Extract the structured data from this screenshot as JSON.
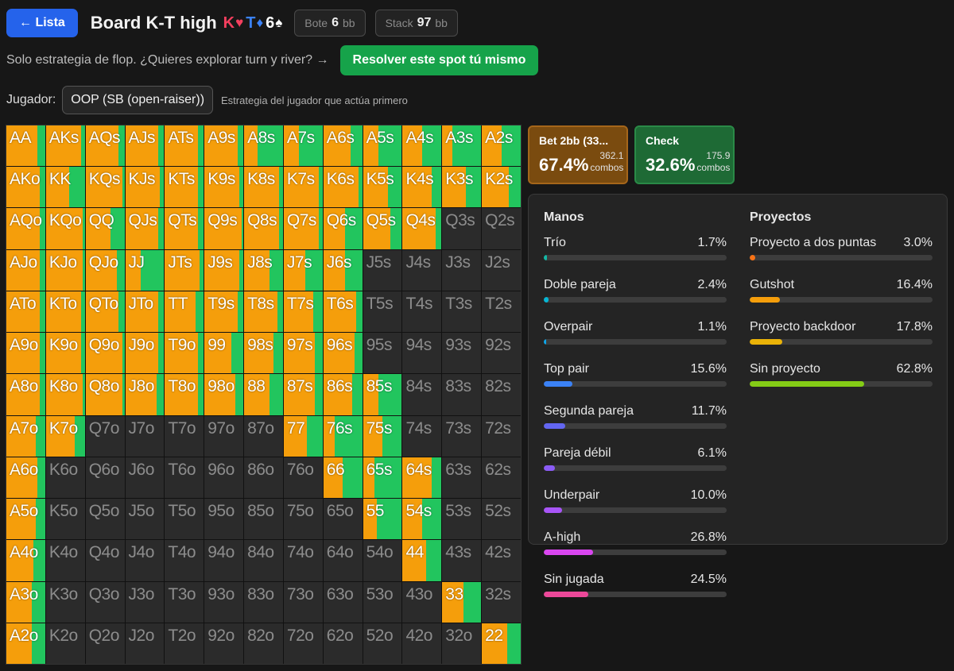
{
  "header": {
    "back_label": "← Lista",
    "board_title": "Board K-T high",
    "board_cards": [
      {
        "rank": "K",
        "suit": "♥",
        "color": "#f43f5e"
      },
      {
        "rank": "T",
        "suit": "♦",
        "color": "#3b82f6"
      },
      {
        "rank": "6",
        "suit": "♠",
        "color": "#ffffff"
      }
    ],
    "pot": {
      "label": "Bote",
      "value": "6",
      "unit": "bb"
    },
    "stack": {
      "label": "Stack",
      "value": "97",
      "unit": "bb"
    }
  },
  "promo": {
    "text": "Solo estrategia de flop. ¿Quieres explorar turn y river? →",
    "button_label": "Resolver este spot tú mismo"
  },
  "player": {
    "label": "Jugador:",
    "selected": "OOP (SB (open-raiser))",
    "description": "Estrategia del jugador que actúa primero"
  },
  "colors": {
    "bet": "#f59e0b",
    "check": "#22c55e",
    "empty": "#2b2b2b"
  },
  "actions": [
    {
      "label": "Bet 2bb (33...",
      "pct": "67.4%",
      "combos": "362.1",
      "combos_label": "combos"
    },
    {
      "label": "Check",
      "pct": "32.6%",
      "combos": "175.9",
      "combos_label": "combos"
    }
  ],
  "matrix": {
    "rows": [
      [
        {
          "h": "AA",
          "b": 0.8
        },
        {
          "h": "AKs",
          "b": 0.9
        },
        {
          "h": "AQs",
          "b": 0.85
        },
        {
          "h": "AJs",
          "b": 0.85
        },
        {
          "h": "ATs",
          "b": 0.85
        },
        {
          "h": "A9s",
          "b": 0.85
        },
        {
          "h": "A8s",
          "b": 0.35
        },
        {
          "h": "A7s",
          "b": 0.4
        },
        {
          "h": "A6s",
          "b": 0.7
        },
        {
          "h": "A5s",
          "b": 0.4
        },
        {
          "h": "A4s",
          "b": 0.5
        },
        {
          "h": "A3s",
          "b": 0.25
        },
        {
          "h": "A2s",
          "b": 0.5
        }
      ],
      [
        {
          "h": "AKo",
          "b": 0.85
        },
        {
          "h": "KK",
          "b": 0.6
        },
        {
          "h": "KQs",
          "b": 0.95
        },
        {
          "h": "KJs",
          "b": 0.9
        },
        {
          "h": "KTs",
          "b": 0.85
        },
        {
          "h": "K9s",
          "b": 0.9
        },
        {
          "h": "K8s",
          "b": 0.9
        },
        {
          "h": "K7s",
          "b": 0.9
        },
        {
          "h": "K6s",
          "b": 0.9
        },
        {
          "h": "K5s",
          "b": 0.65
        },
        {
          "h": "K4s",
          "b": 0.75
        },
        {
          "h": "K3s",
          "b": 0.6
        },
        {
          "h": "K2s",
          "b": 0.7
        }
      ],
      [
        {
          "h": "AQo",
          "b": 0.85
        },
        {
          "h": "KQo",
          "b": 0.95
        },
        {
          "h": "QQ",
          "b": 0.65
        },
        {
          "h": "QJs",
          "b": 0.85
        },
        {
          "h": "QTs",
          "b": 0.85
        },
        {
          "h": "Q9s",
          "b": 0.95
        },
        {
          "h": "Q8s",
          "b": 0.9
        },
        {
          "h": "Q7s",
          "b": 0.9
        },
        {
          "h": "Q6s",
          "b": 0.55
        },
        {
          "h": "Q5s",
          "b": 0.7
        },
        {
          "h": "Q4s",
          "b": 0.85
        },
        {
          "h": "Q3s",
          "b": null
        },
        {
          "h": "Q2s",
          "b": null
        }
      ],
      [
        {
          "h": "AJo",
          "b": 0.85
        },
        {
          "h": "KJo",
          "b": 0.95
        },
        {
          "h": "QJo",
          "b": 0.8
        },
        {
          "h": "JJ",
          "b": 0.4
        },
        {
          "h": "JTs",
          "b": 0.9
        },
        {
          "h": "J9s",
          "b": 0.9
        },
        {
          "h": "J8s",
          "b": 0.65
        },
        {
          "h": "J7s",
          "b": 0.55
        },
        {
          "h": "J6s",
          "b": 0.55
        },
        {
          "h": "J5s",
          "b": null
        },
        {
          "h": "J4s",
          "b": null
        },
        {
          "h": "J3s",
          "b": null
        },
        {
          "h": "J2s",
          "b": null
        }
      ],
      [
        {
          "h": "ATo",
          "b": 0.85
        },
        {
          "h": "KTo",
          "b": 0.9
        },
        {
          "h": "QTo",
          "b": 0.85
        },
        {
          "h": "JTo",
          "b": 0.85
        },
        {
          "h": "TT",
          "b": 0.8
        },
        {
          "h": "T9s",
          "b": 0.85
        },
        {
          "h": "T8s",
          "b": 0.85
        },
        {
          "h": "T7s",
          "b": 0.75
        },
        {
          "h": "T6s",
          "b": 0.85
        },
        {
          "h": "T5s",
          "b": null
        },
        {
          "h": "T4s",
          "b": null
        },
        {
          "h": "T3s",
          "b": null
        },
        {
          "h": "T2s",
          "b": null
        }
      ],
      [
        {
          "h": "A9o",
          "b": 0.85
        },
        {
          "h": "K9o",
          "b": 0.9
        },
        {
          "h": "Q9o",
          "b": 0.95
        },
        {
          "h": "J9o",
          "b": 0.85
        },
        {
          "h": "T9o",
          "b": 0.85
        },
        {
          "h": "99",
          "b": 0.7
        },
        {
          "h": "98s",
          "b": 0.75
        },
        {
          "h": "97s",
          "b": 0.8
        },
        {
          "h": "96s",
          "b": 0.8
        },
        {
          "h": "95s",
          "b": null
        },
        {
          "h": "94s",
          "b": null
        },
        {
          "h": "93s",
          "b": null
        },
        {
          "h": "92s",
          "b": null
        }
      ],
      [
        {
          "h": "A8o",
          "b": 0.85
        },
        {
          "h": "K8o",
          "b": 0.95
        },
        {
          "h": "Q8o",
          "b": 0.95
        },
        {
          "h": "J8o",
          "b": 0.8
        },
        {
          "h": "T8o",
          "b": 0.85
        },
        {
          "h": "98o",
          "b": 0.8
        },
        {
          "h": "88",
          "b": 0.65
        },
        {
          "h": "87s",
          "b": 0.8
        },
        {
          "h": "86s",
          "b": 0.75
        },
        {
          "h": "85s",
          "b": 0.4
        },
        {
          "h": "84s",
          "b": null
        },
        {
          "h": "83s",
          "b": null
        },
        {
          "h": "82s",
          "b": null
        }
      ],
      [
        {
          "h": "A7o",
          "b": 0.75
        },
        {
          "h": "K7o",
          "b": 0.75
        },
        {
          "h": "Q7o",
          "b": null
        },
        {
          "h": "J7o",
          "b": null
        },
        {
          "h": "T7o",
          "b": null
        },
        {
          "h": "97o",
          "b": null
        },
        {
          "h": "87o",
          "b": null
        },
        {
          "h": "77",
          "b": 0.6
        },
        {
          "h": "76s",
          "b": 0.3
        },
        {
          "h": "75s",
          "b": 0.5
        },
        {
          "h": "74s",
          "b": null
        },
        {
          "h": "73s",
          "b": null
        },
        {
          "h": "72s",
          "b": null
        }
      ],
      [
        {
          "h": "A6o",
          "b": 0.8
        },
        {
          "h": "K6o",
          "b": null
        },
        {
          "h": "Q6o",
          "b": null
        },
        {
          "h": "J6o",
          "b": null
        },
        {
          "h": "T6o",
          "b": null
        },
        {
          "h": "96o",
          "b": null
        },
        {
          "h": "86o",
          "b": null
        },
        {
          "h": "76o",
          "b": null
        },
        {
          "h": "66",
          "b": 0.5
        },
        {
          "h": "65s",
          "b": 0.3
        },
        {
          "h": "64s",
          "b": 0.75
        },
        {
          "h": "63s",
          "b": null
        },
        {
          "h": "62s",
          "b": null
        }
      ],
      [
        {
          "h": "A5o",
          "b": 0.75
        },
        {
          "h": "K5o",
          "b": null
        },
        {
          "h": "Q5o",
          "b": null
        },
        {
          "h": "J5o",
          "b": null
        },
        {
          "h": "T5o",
          "b": null
        },
        {
          "h": "95o",
          "b": null
        },
        {
          "h": "85o",
          "b": null
        },
        {
          "h": "75o",
          "b": null
        },
        {
          "h": "65o",
          "b": null
        },
        {
          "h": "55",
          "b": 0.35
        },
        {
          "h": "54s",
          "b": 0.5
        },
        {
          "h": "53s",
          "b": null
        },
        {
          "h": "52s",
          "b": null
        }
      ],
      [
        {
          "h": "A4o",
          "b": 0.7
        },
        {
          "h": "K4o",
          "b": null
        },
        {
          "h": "Q4o",
          "b": null
        },
        {
          "h": "J4o",
          "b": null
        },
        {
          "h": "T4o",
          "b": null
        },
        {
          "h": "94o",
          "b": null
        },
        {
          "h": "84o",
          "b": null
        },
        {
          "h": "74o",
          "b": null
        },
        {
          "h": "64o",
          "b": null
        },
        {
          "h": "54o",
          "b": null
        },
        {
          "h": "44",
          "b": 0.6
        },
        {
          "h": "43s",
          "b": null
        },
        {
          "h": "42s",
          "b": null
        }
      ],
      [
        {
          "h": "A3o",
          "b": 0.65
        },
        {
          "h": "K3o",
          "b": null
        },
        {
          "h": "Q3o",
          "b": null
        },
        {
          "h": "J3o",
          "b": null
        },
        {
          "h": "T3o",
          "b": null
        },
        {
          "h": "93o",
          "b": null
        },
        {
          "h": "83o",
          "b": null
        },
        {
          "h": "73o",
          "b": null
        },
        {
          "h": "63o",
          "b": null
        },
        {
          "h": "53o",
          "b": null
        },
        {
          "h": "43o",
          "b": null
        },
        {
          "h": "33",
          "b": 0.55
        },
        {
          "h": "32s",
          "b": null
        }
      ],
      [
        {
          "h": "A2o",
          "b": 0.65
        },
        {
          "h": "K2o",
          "b": null
        },
        {
          "h": "Q2o",
          "b": null
        },
        {
          "h": "J2o",
          "b": null
        },
        {
          "h": "T2o",
          "b": null
        },
        {
          "h": "92o",
          "b": null
        },
        {
          "h": "82o",
          "b": null
        },
        {
          "h": "72o",
          "b": null
        },
        {
          "h": "62o",
          "b": null
        },
        {
          "h": "52o",
          "b": null
        },
        {
          "h": "42o",
          "b": null
        },
        {
          "h": "32o",
          "b": null
        },
        {
          "h": "22",
          "b": 0.65
        }
      ]
    ]
  },
  "stats": {
    "hands_title": "Manos",
    "draws_title": "Proyectos",
    "hands": [
      {
        "label": "Trío",
        "pct": "1.7%",
        "value": 1.7,
        "color": "#14b8a6"
      },
      {
        "label": "Doble pareja",
        "pct": "2.4%",
        "value": 2.4,
        "color": "#06b6d4"
      },
      {
        "label": "Overpair",
        "pct": "1.1%",
        "value": 1.1,
        "color": "#0ea5e9"
      },
      {
        "label": "Top pair",
        "pct": "15.6%",
        "value": 15.6,
        "color": "#3b82f6"
      },
      {
        "label": "Segunda pareja",
        "pct": "11.7%",
        "value": 11.7,
        "color": "#6366f1"
      },
      {
        "label": "Pareja débil",
        "pct": "6.1%",
        "value": 6.1,
        "color": "#8b5cf6"
      },
      {
        "label": "Underpair",
        "pct": "10.0%",
        "value": 10.0,
        "color": "#a855f7"
      },
      {
        "label": "A-high",
        "pct": "26.8%",
        "value": 26.8,
        "color": "#d946ef"
      },
      {
        "label": "Sin jugada",
        "pct": "24.5%",
        "value": 24.5,
        "color": "#ec4899"
      }
    ],
    "draws": [
      {
        "label": "Proyecto a dos puntas",
        "pct": "3.0%",
        "value": 3.0,
        "color": "#f97316"
      },
      {
        "label": "Gutshot",
        "pct": "16.4%",
        "value": 16.4,
        "color": "#f59e0b"
      },
      {
        "label": "Proyecto backdoor",
        "pct": "17.8%",
        "value": 17.8,
        "color": "#eab308"
      },
      {
        "label": "Sin proyecto",
        "pct": "62.8%",
        "value": 62.8,
        "color": "#84cc16"
      }
    ]
  }
}
